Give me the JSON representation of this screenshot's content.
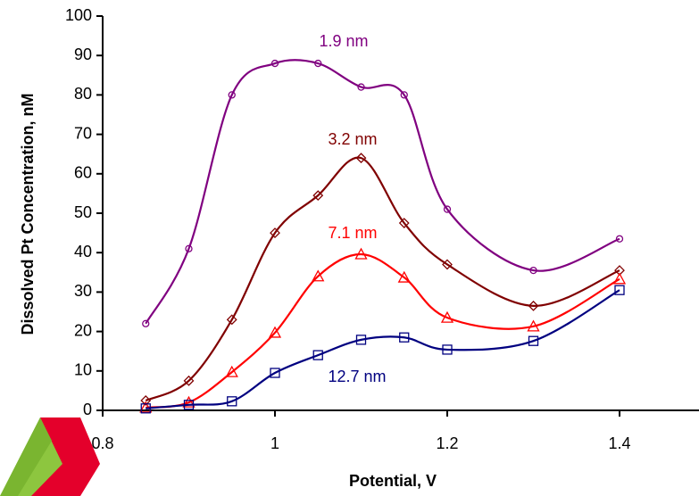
{
  "chart_data": {
    "type": "line",
    "x_label": "Potential, V",
    "y_label": "Dissolved Pt Concentration, nM",
    "x": [
      0.85,
      0.9,
      0.95,
      1.0,
      1.05,
      1.1,
      1.15,
      1.2,
      1.3,
      1.4
    ],
    "series": [
      {
        "name": "1.9 nm",
        "color": "#800080",
        "marker": "circle",
        "values": [
          22,
          41,
          80,
          88,
          88,
          82,
          80,
          51,
          35.5,
          43.5
        ]
      },
      {
        "name": "3.2 nm",
        "color": "#800000",
        "marker": "diamond",
        "values": [
          2.5,
          7.5,
          23,
          45,
          54.5,
          64,
          47.5,
          37,
          26.5,
          35.5
        ]
      },
      {
        "name": "7.1 nm",
        "color": "#ff0000",
        "marker": "triangle",
        "values": [
          0.7,
          2,
          9.7,
          19.7,
          34,
          39.6,
          33.7,
          23.5,
          21.3,
          33.3
        ]
      },
      {
        "name": "12.7 nm",
        "color": "#000080",
        "marker": "square",
        "values": [
          0.5,
          1.4,
          2.3,
          9.5,
          14,
          17.9,
          18.5,
          15.4,
          17.6,
          30.5
        ]
      }
    ],
    "xlim": [
      0.8,
      1.5
    ],
    "xticks": [
      0.8,
      1,
      1.2,
      1.4
    ],
    "ylim": [
      0,
      100
    ],
    "yticks": [
      0,
      10,
      20,
      30,
      40,
      50,
      60,
      70,
      80,
      90,
      100
    ],
    "smooth": true
  }
}
